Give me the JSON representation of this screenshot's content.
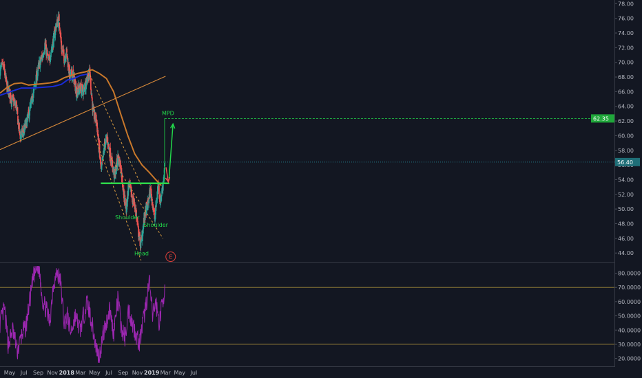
{
  "colors": {
    "background": "#131722",
    "up": "#26a69a",
    "down": "#ef5350",
    "ma_long": "#c9782b",
    "ma_short": "#1a2bd6",
    "trendline": "#d98a3a",
    "support": "#2ed84a",
    "rsi": "#9c27b0",
    "rsi_bands": "#a0893a",
    "target": "#22d84a",
    "price_line": "#2aa0b0",
    "arrow_down": "#ef5350",
    "event": "#e0403a"
  },
  "chart_data": [
    {
      "type": "candlestick",
      "title": "",
      "x_tick_labels": [
        "May",
        "Jul",
        "Sep",
        "Nov",
        "2018",
        "Mar",
        "May",
        "Jul",
        "Sep",
        "Nov",
        "2019",
        "Mar",
        "May",
        "Jul"
      ],
      "y_tick_labels": [
        "44.00",
        "46.00",
        "48.00",
        "50.00",
        "52.00",
        "54.00",
        "56.00",
        "58.00",
        "60.00",
        "62.00",
        "64.00",
        "66.00",
        "68.00",
        "70.00",
        "72.00",
        "74.00",
        "76.00",
        "78.00"
      ],
      "ylim": [
        42.8,
        78.5
      ],
      "start_date": "2017-05-01",
      "anchors": [
        [
          "2017-05-01",
          69.0
        ],
        [
          "2017-05-15",
          69.5
        ],
        [
          "2017-06-01",
          66.5
        ],
        [
          "2017-06-20",
          65.0
        ],
        [
          "2017-07-10",
          64.0
        ],
        [
          "2017-07-25",
          60.0
        ],
        [
          "2017-08-10",
          60.5
        ],
        [
          "2017-08-25",
          62.0
        ],
        [
          "2017-09-10",
          64.0
        ],
        [
          "2017-09-25",
          66.5
        ],
        [
          "2017-10-15",
          69.5
        ],
        [
          "2017-11-01",
          71.0
        ],
        [
          "2017-11-10",
          72.5
        ],
        [
          "2017-11-25",
          70.0
        ],
        [
          "2017-12-10",
          72.0
        ],
        [
          "2017-12-28",
          75.0
        ],
        [
          "2018-01-10",
          76.0
        ],
        [
          "2018-01-20",
          72.0
        ],
        [
          "2018-02-01",
          70.5
        ],
        [
          "2018-02-10",
          71.5
        ],
        [
          "2018-02-25",
          68.0
        ],
        [
          "2018-03-10",
          68.5
        ],
        [
          "2018-03-25",
          66.0
        ],
        [
          "2018-04-10",
          66.5
        ],
        [
          "2018-04-25",
          66.0
        ],
        [
          "2018-05-10",
          68.0
        ],
        [
          "2018-05-22",
          68.5
        ],
        [
          "2018-06-05",
          63.0
        ],
        [
          "2018-06-20",
          62.0
        ],
        [
          "2018-07-01",
          58.0
        ],
        [
          "2018-07-10",
          55.0
        ],
        [
          "2018-07-25",
          59.0
        ],
        [
          "2018-08-05",
          59.5
        ],
        [
          "2018-08-20",
          57.0
        ],
        [
          "2018-09-05",
          54.5
        ],
        [
          "2018-09-20",
          57.0
        ],
        [
          "2018-10-01",
          56.0
        ],
        [
          "2018-10-15",
          52.0
        ],
        [
          "2018-10-25",
          50.0
        ],
        [
          "2018-11-05",
          53.5
        ],
        [
          "2018-11-20",
          51.5
        ],
        [
          "2018-12-05",
          50.0
        ],
        [
          "2018-12-15",
          47.0
        ],
        [
          "2018-12-27",
          45.0
        ],
        [
          "2019-01-05",
          47.5
        ],
        [
          "2019-01-15",
          49.5
        ],
        [
          "2019-01-25",
          50.5
        ],
        [
          "2019-02-05",
          52.5
        ],
        [
          "2019-02-15",
          51.0
        ],
        [
          "2019-02-25",
          48.5
        ],
        [
          "2019-03-05",
          51.5
        ],
        [
          "2019-03-12",
          53.5
        ],
        [
          "2019-03-20",
          51.0
        ],
        [
          "2019-03-28",
          52.5
        ],
        [
          "2019-04-04",
          54.5
        ],
        [
          "2019-04-10",
          56.4
        ]
      ],
      "series": [
        {
          "name": "",
          "type": "line",
          "points": [
            [
              "2017-05-01",
              65.8
            ],
            [
              "2017-06-01",
              66.6
            ],
            [
              "2017-07-01",
              67.1
            ],
            [
              "2017-08-01",
              67.2
            ],
            [
              "2017-09-01",
              66.9
            ],
            [
              "2017-10-01",
              67.0
            ],
            [
              "2017-11-01",
              67.1
            ],
            [
              "2017-12-01",
              67.2
            ],
            [
              "2018-01-01",
              67.4
            ],
            [
              "2018-02-01",
              67.9
            ],
            [
              "2018-03-01",
              68.2
            ],
            [
              "2018-04-01",
              68.5
            ],
            [
              "2018-05-01",
              68.7
            ],
            [
              "2018-06-01",
              69.0
            ],
            [
              "2018-07-01",
              68.5
            ],
            [
              "2018-08-01",
              67.8
            ],
            [
              "2018-09-01",
              66.0
            ],
            [
              "2018-10-01",
              63.0
            ],
            [
              "2018-11-01",
              60.0
            ],
            [
              "2018-12-01",
              57.5
            ],
            [
              "2019-01-01",
              56.0
            ],
            [
              "2019-02-01",
              55.0
            ],
            [
              "2019-03-01",
              54.0
            ],
            [
              "2019-03-25",
              53.2
            ]
          ]
        },
        {
          "name": "",
          "type": "line",
          "points": [
            [
              "2017-05-01",
              65.5
            ],
            [
              "2017-06-15",
              66.0
            ],
            [
              "2017-08-01",
              66.5
            ],
            [
              "2017-09-15",
              66.5
            ],
            [
              "2017-11-01",
              66.6
            ],
            [
              "2017-12-15",
              66.7
            ],
            [
              "2018-01-20",
              67.0
            ],
            [
              "2018-02-15",
              67.6
            ],
            [
              "2018-03-15",
              67.8
            ],
            [
              "2018-04-10",
              68.2
            ],
            [
              "2018-05-10",
              68.4
            ]
          ]
        }
      ],
      "annotations": {
        "trendline": [
          [
            "2017-05-01",
            58.1
          ],
          [
            "2019-04-12",
            68.1
          ]
        ],
        "channel_upper": [
          [
            "2018-05-22",
            68.3
          ],
          [
            "2019-01-01",
            53.0
          ]
        ],
        "channel_middle": [
          [
            "2018-07-05",
            59.3
          ],
          [
            "2019-04-01",
            46.0
          ]
        ],
        "channel_lower": [
          [
            "2018-06-10",
            60.0
          ],
          [
            "2018-12-28",
            43.0
          ]
        ],
        "support_level": 53.5,
        "support_range": [
          "2018-07-08",
          "2019-04-28"
        ],
        "target_level": 62.35,
        "target_label": "62.35",
        "mpd_label": "MPD",
        "current_price": 56.4,
        "current_price_label": "56.40",
        "labels": {
          "left_shoulder": "Shoulder",
          "head": "Head",
          "right_shoulder": "Shoulder"
        },
        "event_label": "E"
      }
    },
    {
      "type": "line",
      "title": "",
      "name": "",
      "y_tick_labels": [
        "20.0000",
        "30.0000",
        "40.0000",
        "50.0000",
        "60.0000",
        "70.0000",
        "80.0000"
      ],
      "ylim": [
        15,
        87
      ],
      "bands": [
        30,
        70
      ],
      "anchors": [
        [
          "2017-05-01",
          45
        ],
        [
          "2017-05-20",
          55
        ],
        [
          "2017-06-05",
          30
        ],
        [
          "2017-06-25",
          40
        ],
        [
          "2017-07-15",
          25
        ],
        [
          "2017-08-05",
          38
        ],
        [
          "2017-08-20",
          42
        ],
        [
          "2017-09-10",
          65
        ],
        [
          "2017-09-25",
          80
        ],
        [
          "2017-10-15",
          85
        ],
        [
          "2017-11-01",
          60
        ],
        [
          "2017-11-15",
          55
        ],
        [
          "2017-12-01",
          45
        ],
        [
          "2017-12-15",
          72
        ],
        [
          "2018-01-01",
          80
        ],
        [
          "2018-01-15",
          75
        ],
        [
          "2018-02-01",
          45
        ],
        [
          "2018-02-15",
          50
        ],
        [
          "2018-03-01",
          38
        ],
        [
          "2018-03-20",
          50
        ],
        [
          "2018-04-10",
          40
        ],
        [
          "2018-04-25",
          50
        ],
        [
          "2018-05-10",
          60
        ],
        [
          "2018-05-25",
          50
        ],
        [
          "2018-06-15",
          30
        ],
        [
          "2018-07-01",
          20
        ],
        [
          "2018-07-15",
          35
        ],
        [
          "2018-08-01",
          45
        ],
        [
          "2018-08-15",
          55
        ],
        [
          "2018-09-01",
          38
        ],
        [
          "2018-09-20",
          62
        ],
        [
          "2018-10-05",
          40
        ],
        [
          "2018-10-20",
          35
        ],
        [
          "2018-11-05",
          55
        ],
        [
          "2018-11-20",
          45
        ],
        [
          "2018-12-05",
          38
        ],
        [
          "2018-12-20",
          30
        ],
        [
          "2019-01-05",
          45
        ],
        [
          "2019-01-20",
          60
        ],
        [
          "2019-02-01",
          74
        ],
        [
          "2019-02-15",
          50
        ],
        [
          "2019-03-01",
          60
        ],
        [
          "2019-03-15",
          45
        ],
        [
          "2019-03-28",
          58
        ],
        [
          "2019-04-10",
          71
        ]
      ]
    }
  ]
}
